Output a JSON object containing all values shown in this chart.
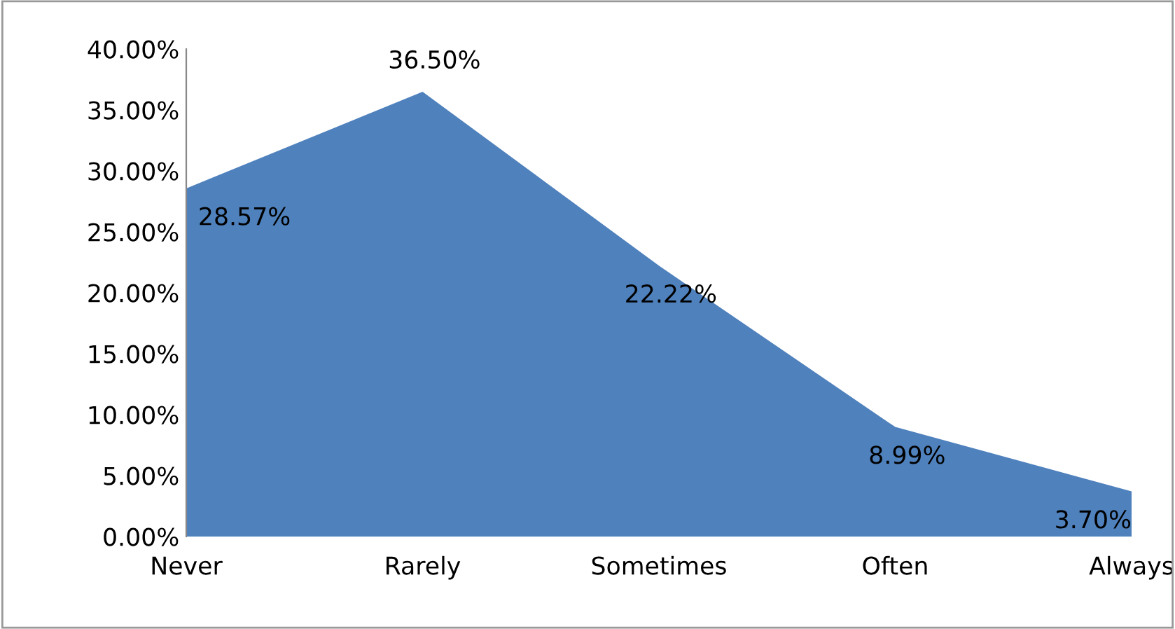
{
  "chart_data": {
    "type": "area",
    "categories": [
      "Never",
      "Rarely",
      "Sometimes",
      "Often",
      "Always"
    ],
    "series": [
      {
        "color": "#4f81bd",
        "values": [
          28.57,
          36.5,
          22.22,
          8.99,
          3.7
        ]
      }
    ],
    "value_labels": [
      "28.57%",
      "36.50%",
      "22.22%",
      "8.99%",
      "3.70%"
    ],
    "ylim": [
      0,
      40
    ],
    "yticks": [
      {
        "value": 0,
        "label": "0.00%"
      },
      {
        "value": 5,
        "label": "5.00%"
      },
      {
        "value": 10,
        "label": "10.00%"
      },
      {
        "value": 15,
        "label": "15.00%"
      },
      {
        "value": 20,
        "label": "20.00%"
      },
      {
        "value": 25,
        "label": "25.00%"
      },
      {
        "value": 30,
        "label": "30.00%"
      },
      {
        "value": 35,
        "label": "35.00%"
      },
      {
        "value": 40,
        "label": "40.00%"
      }
    ],
    "grid": false,
    "legend": false
  }
}
